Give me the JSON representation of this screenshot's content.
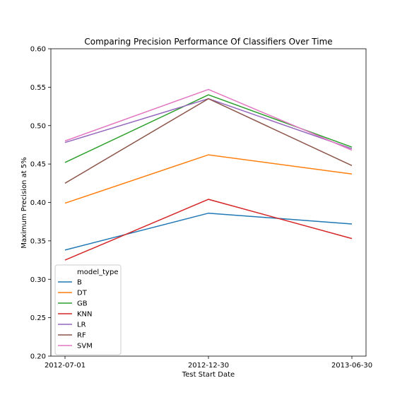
{
  "chart_data": {
    "type": "line",
    "title": "Comparing Precision Performance Of Classifiers Over Time",
    "xlabel": "Test Start Date",
    "ylabel": "Maximum Precision at 5%",
    "x": [
      "2012-07-01",
      "2012-12-30",
      "2013-06-30"
    ],
    "ylim": [
      0.2,
      0.6
    ],
    "yticks": [
      0.2,
      0.25,
      0.3,
      0.35,
      0.4,
      0.45,
      0.5,
      0.55,
      0.6
    ],
    "grid": false,
    "legend": {
      "title": "model_type",
      "placement": "lower-left"
    },
    "series": [
      {
        "name": "B",
        "color": "#1f77b4",
        "values": [
          0.338,
          0.386,
          0.372
        ]
      },
      {
        "name": "DT",
        "color": "#ff7f0e",
        "values": [
          0.399,
          0.462,
          0.437
        ]
      },
      {
        "name": "GB",
        "color": "#2ca02c",
        "values": [
          0.452,
          0.54,
          0.472
        ]
      },
      {
        "name": "KNN",
        "color": "#d62728",
        "values": [
          0.325,
          0.404,
          0.353
        ]
      },
      {
        "name": "LR",
        "color": "#9467bd",
        "values": [
          0.478,
          0.535,
          0.47
        ]
      },
      {
        "name": "RF",
        "color": "#8c564b",
        "values": [
          0.425,
          0.535,
          0.448
        ]
      },
      {
        "name": "SVM",
        "color": "#e377c2",
        "values": [
          0.48,
          0.547,
          0.468
        ]
      }
    ]
  }
}
